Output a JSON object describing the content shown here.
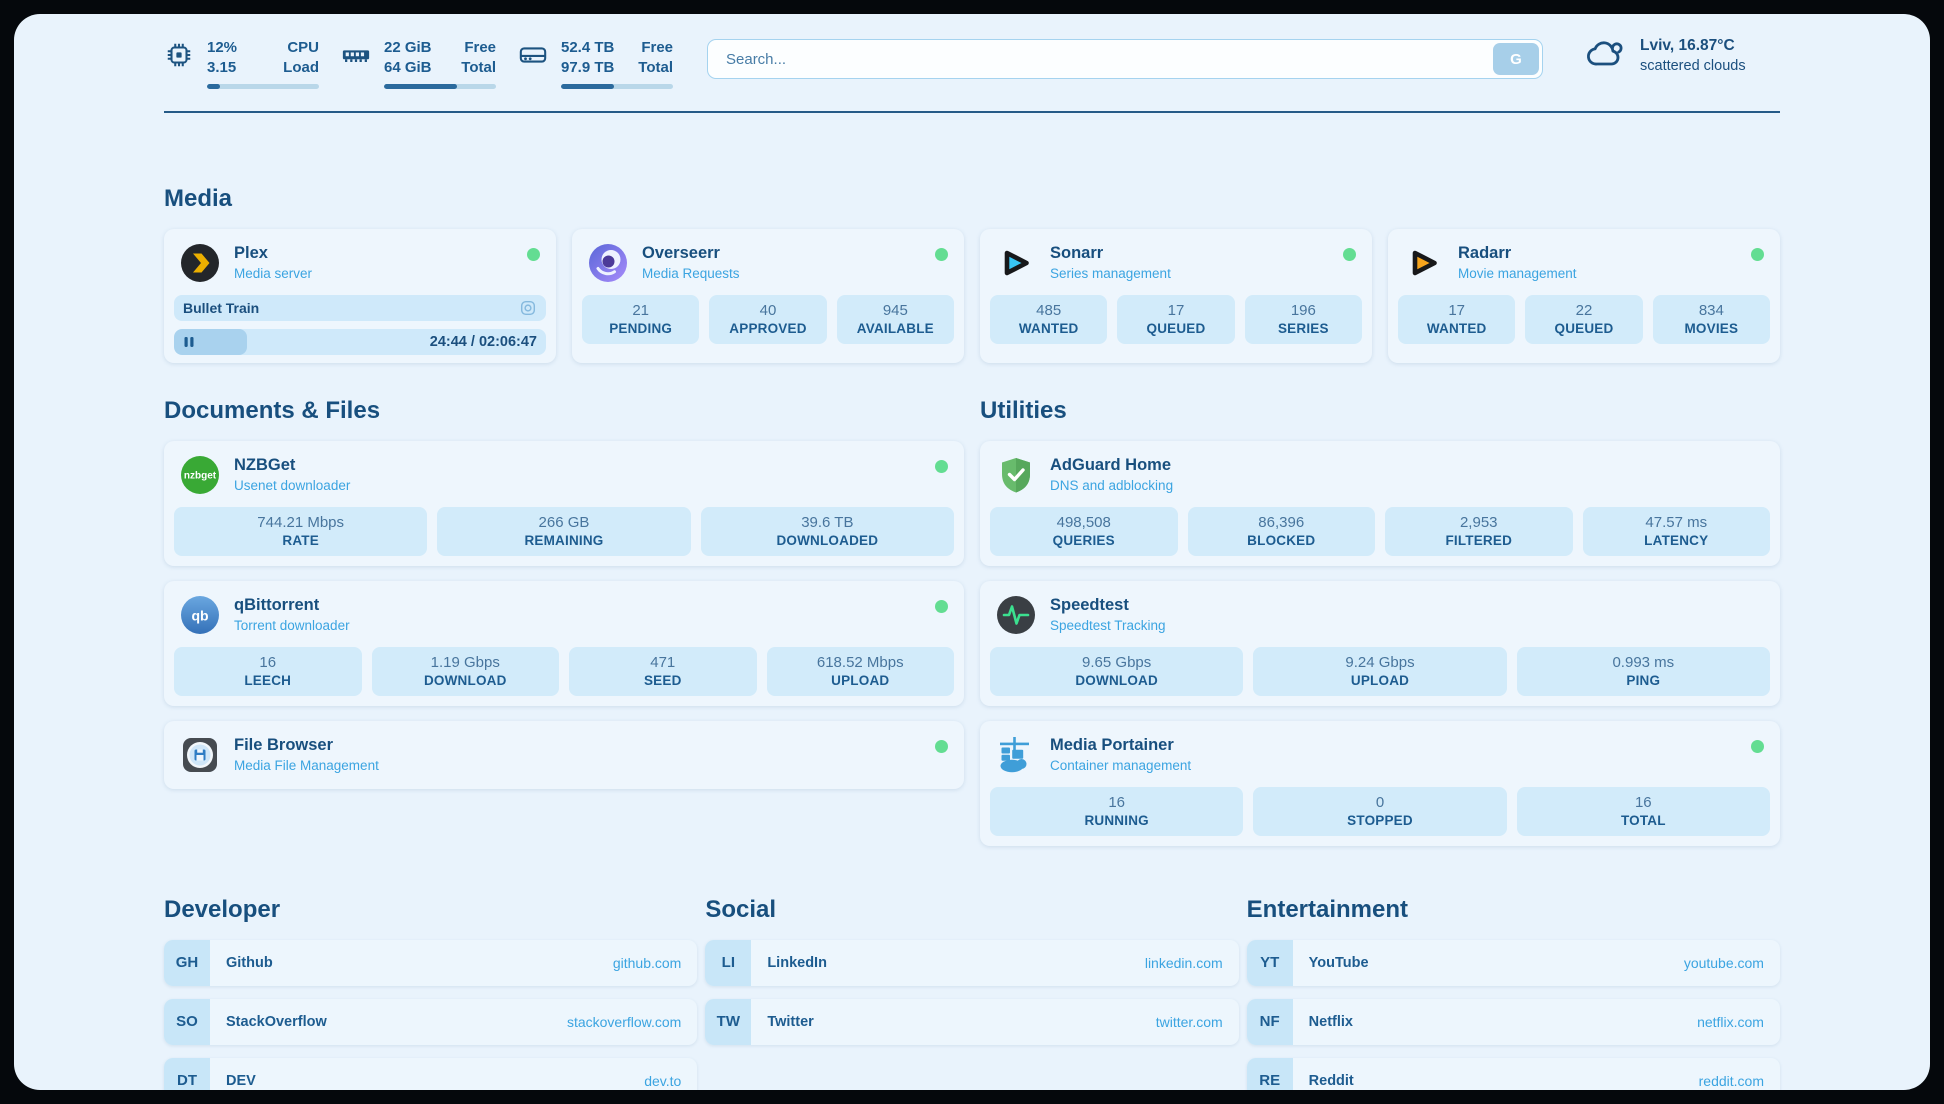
{
  "colors": {
    "accent_blue": "#3ba4e1",
    "navy_text": "#1b4f7e",
    "status_green": "#63dd92",
    "panel_bg": "#e9f3fc",
    "card_bg": "#eef6fd",
    "stat_bg": "#d2ebfa"
  },
  "topbar": {
    "monitors": [
      {
        "icon": "cpu-icon",
        "value_top": "12%",
        "value_bottom": "3.15",
        "label_top": "CPU",
        "label_bottom": "Load",
        "progress_pct": 12
      },
      {
        "icon": "memory-icon",
        "value_top": "22 GiB",
        "value_bottom": "64 GiB",
        "label_top": "Free",
        "label_bottom": "Total",
        "progress_pct": 65
      },
      {
        "icon": "disk-icon",
        "value_top": "52.4 TB",
        "value_bottom": "97.9 TB",
        "label_top": "Free",
        "label_bottom": "Total",
        "progress_pct": 47
      }
    ],
    "search": {
      "placeholder": "Search...",
      "button_label": "G"
    },
    "weather": {
      "location": "Lviv, 16.87°C",
      "condition": "scattered clouds"
    }
  },
  "icons": {
    "nzbget_label": "nzbget",
    "qb_label": "qb"
  },
  "sections": {
    "media": {
      "title": "Media",
      "plex": {
        "name": "Plex",
        "desc": "Media server",
        "now_playing": "Bullet Train",
        "time_display": "24:44 / 02:06:47",
        "progress_pct": 19.6
      },
      "overseerr": {
        "name": "Overseerr",
        "desc": "Media Requests",
        "stats": [
          {
            "value": "21",
            "label": "PENDING"
          },
          {
            "value": "40",
            "label": "APPROVED"
          },
          {
            "value": "945",
            "label": "AVAILABLE"
          }
        ]
      },
      "sonarr": {
        "name": "Sonarr",
        "desc": "Series management",
        "stats": [
          {
            "value": "485",
            "label": "WANTED"
          },
          {
            "value": "17",
            "label": "QUEUED"
          },
          {
            "value": "196",
            "label": "SERIES"
          }
        ]
      },
      "radarr": {
        "name": "Radarr",
        "desc": "Movie management",
        "stats": [
          {
            "value": "17",
            "label": "WANTED"
          },
          {
            "value": "22",
            "label": "QUEUED"
          },
          {
            "value": "834",
            "label": "MOVIES"
          }
        ]
      }
    },
    "documents": {
      "title": "Documents & Files",
      "nzbget": {
        "name": "NZBGet",
        "desc": "Usenet downloader",
        "stats": [
          {
            "value": "744.21 Mbps",
            "label": "RATE"
          },
          {
            "value": "266 GB",
            "label": "REMAINING"
          },
          {
            "value": "39.6 TB",
            "label": "DOWNLOADED"
          }
        ]
      },
      "qbittorrent": {
        "name": "qBittorrent",
        "desc": "Torrent downloader",
        "stats": [
          {
            "value": "16",
            "label": "LEECH"
          },
          {
            "value": "1.19 Gbps",
            "label": "DOWNLOAD"
          },
          {
            "value": "471",
            "label": "SEED"
          },
          {
            "value": "618.52 Mbps",
            "label": "UPLOAD"
          }
        ]
      },
      "filebrowser": {
        "name": "File Browser",
        "desc": "Media File Management"
      }
    },
    "utilities": {
      "title": "Utilities",
      "adguard": {
        "name": "AdGuard Home",
        "desc": "DNS and adblocking",
        "stats": [
          {
            "value": "498,508",
            "label": "QUERIES"
          },
          {
            "value": "86,396",
            "label": "BLOCKED"
          },
          {
            "value": "2,953",
            "label": "FILTERED"
          },
          {
            "value": "47.57 ms",
            "label": "LATENCY"
          }
        ]
      },
      "speedtest": {
        "name": "Speedtest",
        "desc": "Speedtest Tracking",
        "stats": [
          {
            "value": "9.65 Gbps",
            "label": "DOWNLOAD"
          },
          {
            "value": "9.24 Gbps",
            "label": "UPLOAD"
          },
          {
            "value": "0.993 ms",
            "label": "PING"
          }
        ]
      },
      "portainer": {
        "name": "Media Portainer",
        "desc": "Container management",
        "stats": [
          {
            "value": "16",
            "label": "RUNNING"
          },
          {
            "value": "0",
            "label": "STOPPED"
          },
          {
            "value": "16",
            "label": "TOTAL"
          }
        ]
      }
    }
  },
  "bookmarks": [
    {
      "title": "Developer",
      "items": [
        {
          "abbr": "GH",
          "name": "Github",
          "url": "github.com"
        },
        {
          "abbr": "SO",
          "name": "StackOverflow",
          "url": "stackoverflow.com"
        },
        {
          "abbr": "DT",
          "name": "DEV",
          "url": "dev.to"
        }
      ]
    },
    {
      "title": "Social",
      "items": [
        {
          "abbr": "LI",
          "name": "LinkedIn",
          "url": "linkedin.com"
        },
        {
          "abbr": "TW",
          "name": "Twitter",
          "url": "twitter.com"
        }
      ]
    },
    {
      "title": "Entertainment",
      "items": [
        {
          "abbr": "YT",
          "name": "YouTube",
          "url": "youtube.com"
        },
        {
          "abbr": "NF",
          "name": "Netflix",
          "url": "netflix.com"
        },
        {
          "abbr": "RE",
          "name": "Reddit",
          "url": "reddit.com"
        }
      ]
    }
  ]
}
